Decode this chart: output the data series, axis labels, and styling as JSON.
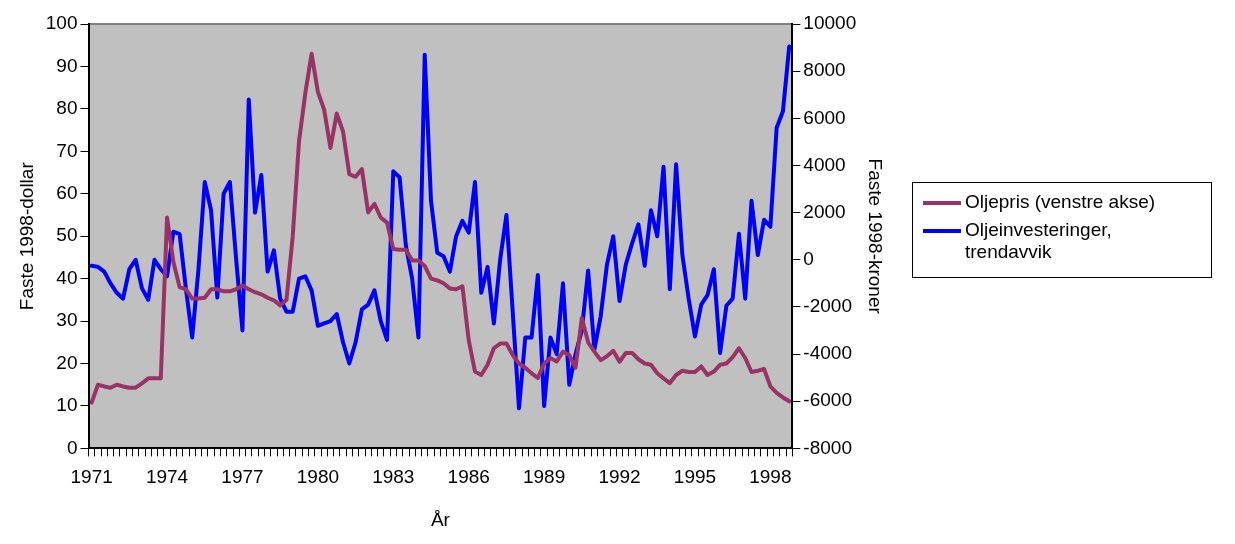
{
  "chart_data": {
    "type": "line",
    "xlabel": "År",
    "ylabel": "Faste 1998-dollar",
    "y2label": "Faste 1998-kroner",
    "legend": "right",
    "categories": [
      "1971",
      null,
      null,
      null,
      null,
      null,
      null,
      null,
      null,
      null,
      null,
      null,
      "1974",
      null,
      null,
      null,
      null,
      null,
      null,
      null,
      null,
      null,
      null,
      null,
      "1977",
      null,
      null,
      null,
      null,
      null,
      null,
      null,
      null,
      null,
      null,
      null,
      "1980",
      null,
      null,
      null,
      null,
      null,
      null,
      null,
      null,
      null,
      null,
      null,
      "1983",
      null,
      null,
      null,
      null,
      null,
      null,
      null,
      null,
      null,
      null,
      null,
      "1986",
      null,
      null,
      null,
      null,
      null,
      null,
      null,
      null,
      null,
      null,
      null,
      "1989",
      null,
      null,
      null,
      null,
      null,
      null,
      null,
      null,
      null,
      null,
      null,
      "1992",
      null,
      null,
      null,
      null,
      null,
      null,
      null,
      null,
      null,
      null,
      null,
      "1995",
      null,
      null,
      null,
      null,
      null,
      null,
      null,
      null,
      null,
      null,
      null,
      "1998",
      null,
      null,
      null
    ],
    "ylim": [
      0,
      100
    ],
    "yticks": [
      0,
      10,
      20,
      30,
      40,
      50,
      60,
      70,
      80,
      90,
      100
    ],
    "y2lim": [
      -8000,
      10000
    ],
    "y2ticks": [
      -8000,
      -6000,
      -4000,
      -2000,
      0,
      2000,
      4000,
      6000,
      8000,
      10000
    ],
    "series": [
      {
        "name": "Oljepris (venstre akse)",
        "color": "#993366",
        "values": [
          10.8,
          15,
          14.6,
          14.3,
          15,
          14.6,
          14.3,
          14.3,
          15.3,
          16.5,
          16.5,
          16.5,
          54.4,
          44,
          38,
          37.5,
          35.3,
          35.3,
          35.5,
          37.5,
          37.5,
          37,
          37,
          37.5,
          38.4,
          37.5,
          36.8,
          36.3,
          35.5,
          34.9,
          33.7,
          35,
          50,
          72.4,
          83.7,
          93,
          84,
          79.8,
          70.8,
          78.9,
          74.7,
          64.6,
          64,
          65.8,
          55.6,
          57.6,
          54.4,
          53.2,
          47,
          46.8,
          46.8,
          44.3,
          44.3,
          43,
          40,
          39.6,
          38.9,
          37.7,
          37.5,
          38.2,
          25.5,
          18.1,
          17.3,
          19.7,
          23.6,
          24.7,
          24.7,
          22,
          20,
          19,
          17.7,
          16.6,
          20,
          21.3,
          20.5,
          22.8,
          22,
          19,
          30.7,
          25,
          22.8,
          20.8,
          21.7,
          23,
          20.4,
          22.5,
          22.5,
          21,
          20,
          19.7,
          17.7,
          16.5,
          15.4,
          17.3,
          18.3,
          18,
          18,
          19.3,
          17.3,
          18.1,
          19.7,
          20,
          21.5,
          23.6,
          21.3,
          18,
          18.3,
          18.7,
          14.6,
          13.1,
          12,
          11.1
        ]
      },
      {
        "name": "Oljeinvesteringer, trendavvik",
        "color": "#0000ff",
        "axis": "y2",
        "values": [
          -250,
          -300,
          -500,
          -1000,
          -1400,
          -1650,
          -400,
          0,
          -1200,
          -1700,
          0,
          -400,
          -700,
          1190,
          1090,
          -1230,
          -3300,
          -400,
          3300,
          2100,
          -1600,
          2800,
          3300,
          0,
          -3000,
          6800,
          2000,
          3600,
          -500,
          400,
          -1650,
          -2200,
          -2200,
          -800,
          -700,
          -1300,
          -2800,
          -2700,
          -2600,
          -2300,
          -3500,
          -4400,
          -3500,
          -2100,
          -1900,
          -1300,
          -2600,
          -3400,
          3750,
          3500,
          600,
          -800,
          -3300,
          8700,
          2500,
          300,
          150,
          -500,
          1000,
          1650,
          1150,
          3300,
          -1400,
          -300,
          -2700,
          0,
          1900,
          -2200,
          -6300,
          -3300,
          -3300,
          -650,
          -6200,
          -3300,
          -4000,
          -1000,
          -5300,
          -4000,
          -3000,
          -450,
          -3800,
          -2400,
          -200,
          1000,
          -1750,
          -200,
          700,
          1500,
          -250,
          2100,
          1000,
          3950,
          -1250,
          4050,
          200,
          -1650,
          -3250,
          -1900,
          -1500,
          -400,
          -3950,
          -1950,
          -1650,
          1100,
          -1650,
          2500,
          200,
          1700,
          1400,
          5600,
          6300,
          9050
        ]
      }
    ]
  }
}
